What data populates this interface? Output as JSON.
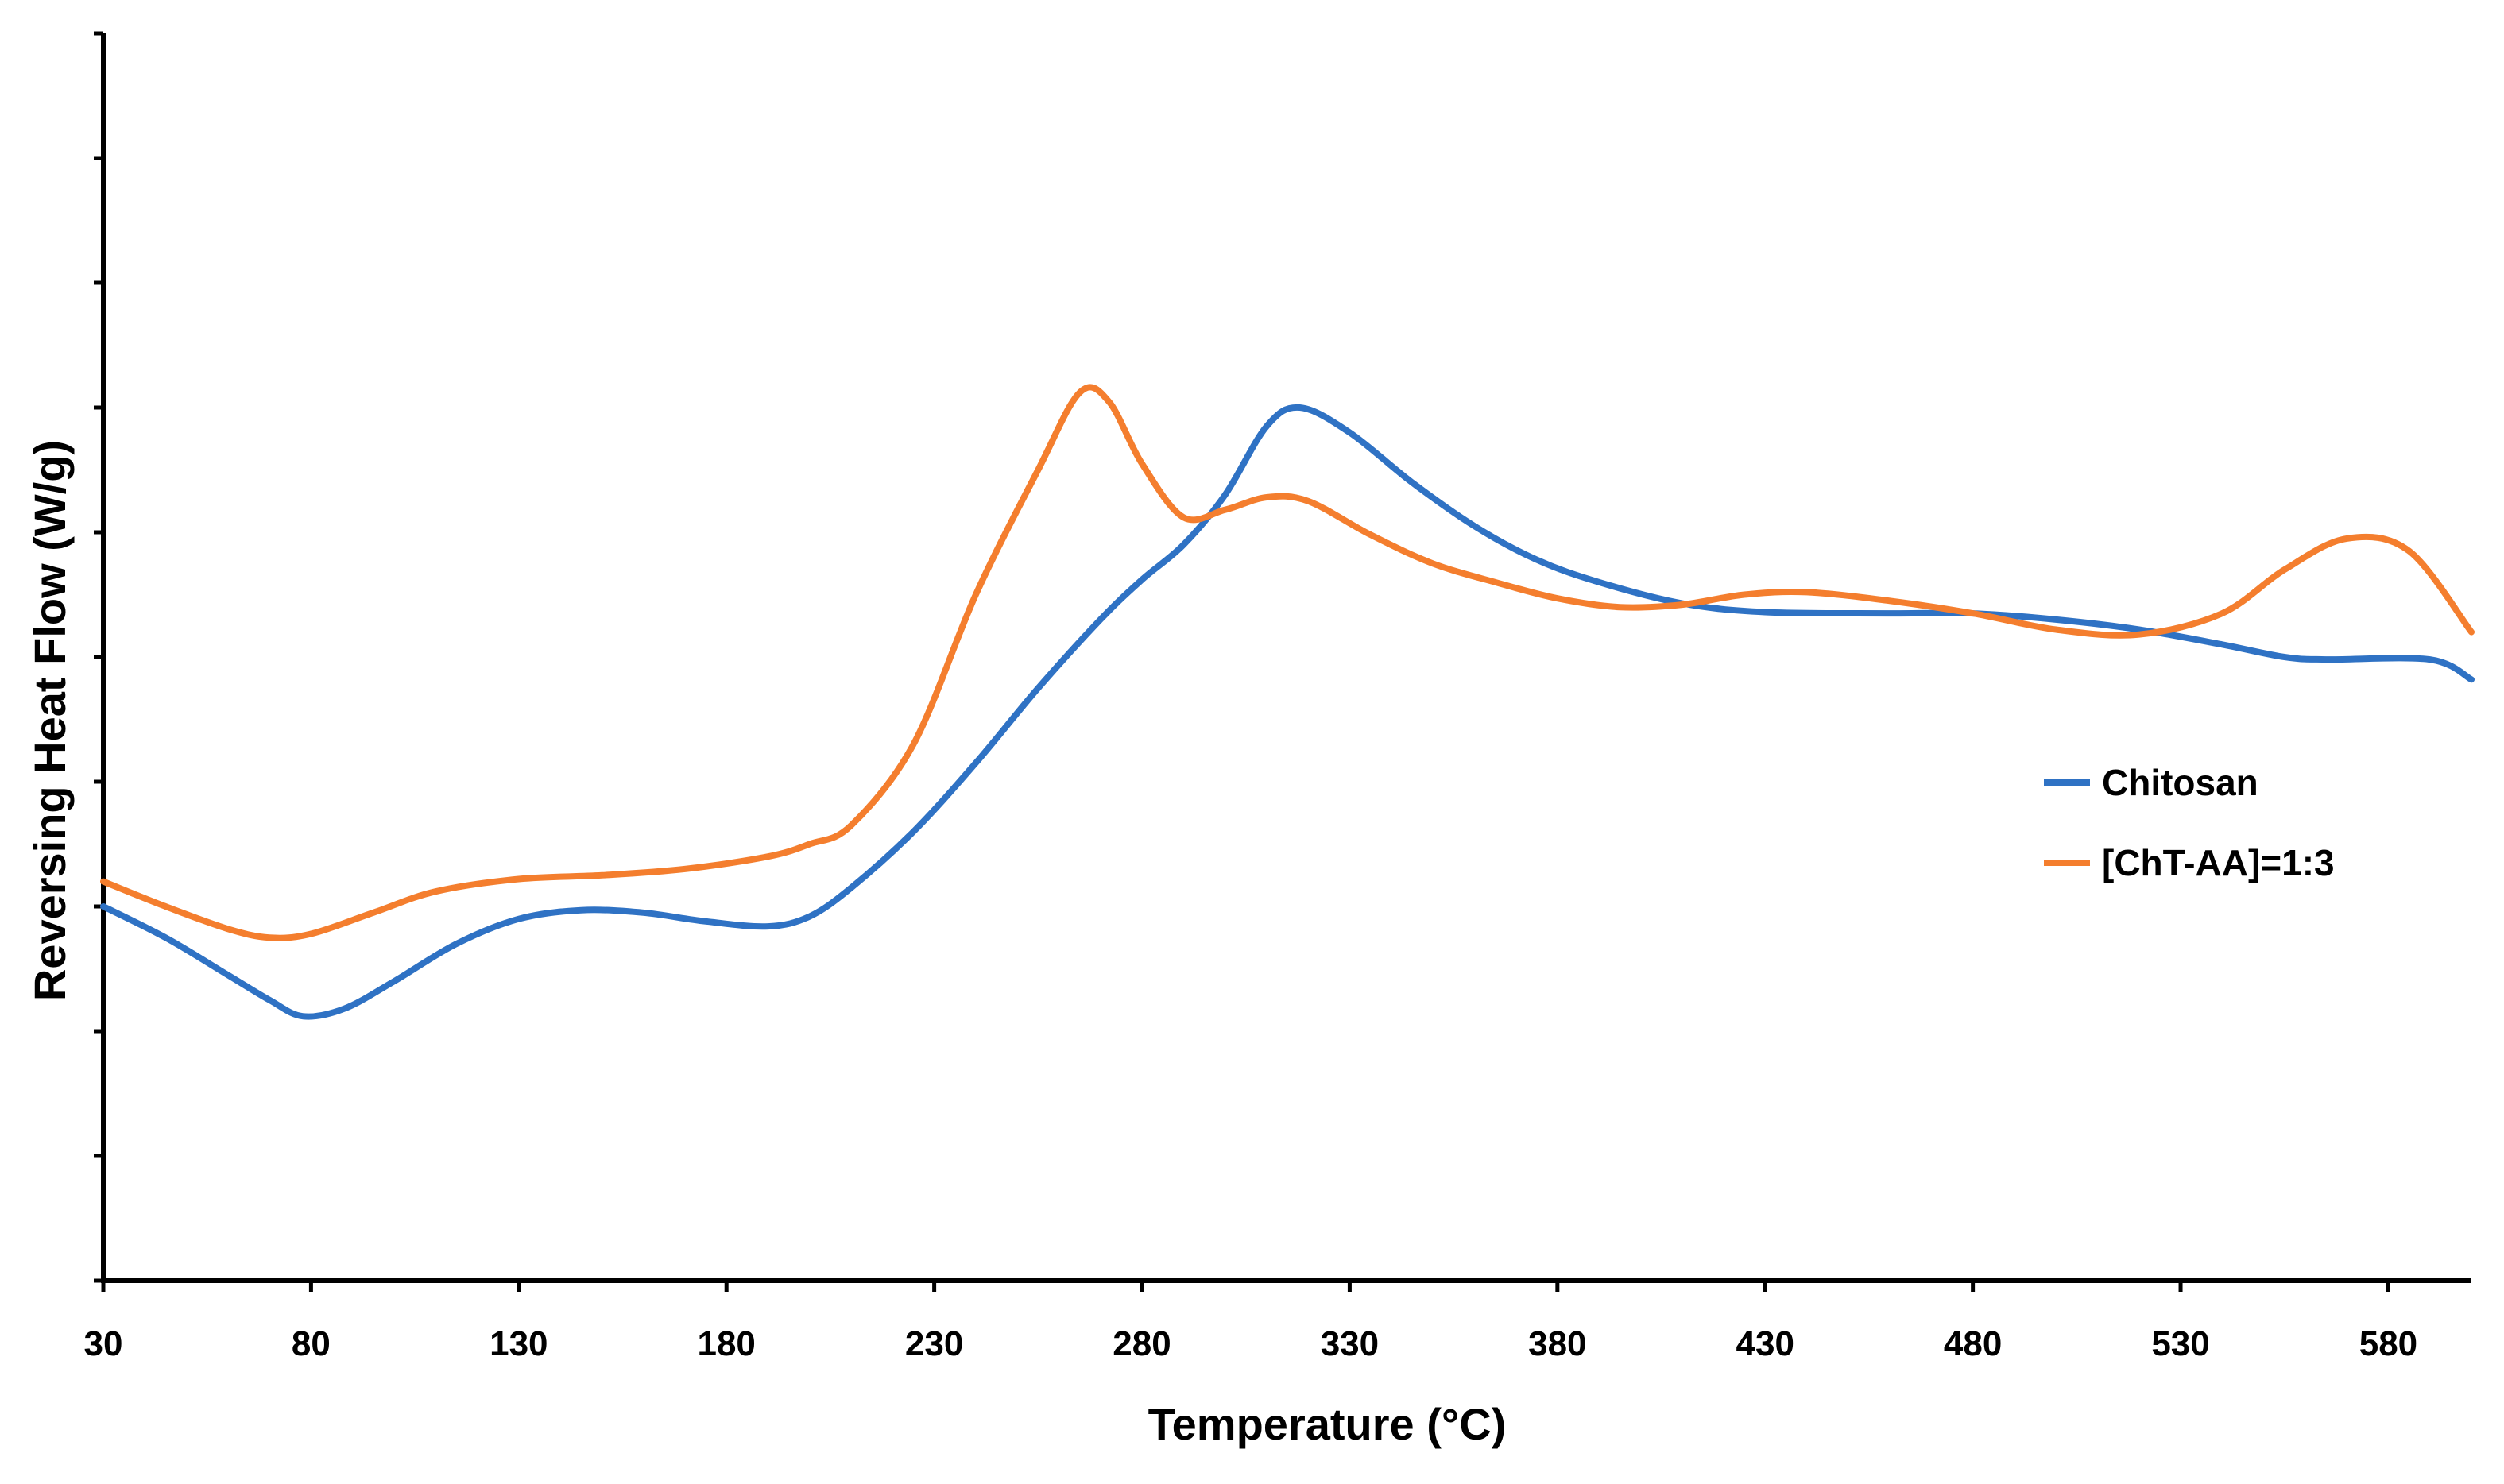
{
  "chart_data": {
    "type": "line",
    "title": "",
    "xlabel": "Temperature (°C)",
    "ylabel": "Reversing Heat Flow (W/g)",
    "xlim": [
      30,
      600
    ],
    "ylim": [
      0,
      10
    ],
    "x_ticks": [
      "30",
      "80",
      "130",
      "180",
      "230",
      "280",
      "330",
      "380",
      "430",
      "480",
      "530",
      "580"
    ],
    "y_tick_count": 11,
    "y_tick_labels_shown": false,
    "grid": false,
    "legend_position": "right",
    "series": [
      {
        "name": "Chitosan",
        "color": "#2F72C4",
        "points": [
          [
            30,
            3.0
          ],
          [
            45,
            2.75
          ],
          [
            60,
            2.45
          ],
          [
            70,
            2.25
          ],
          [
            78,
            2.12
          ],
          [
            88,
            2.18
          ],
          [
            100,
            2.4
          ],
          [
            115,
            2.7
          ],
          [
            130,
            2.9
          ],
          [
            145,
            2.97
          ],
          [
            160,
            2.95
          ],
          [
            175,
            2.88
          ],
          [
            190,
            2.84
          ],
          [
            200,
            2.92
          ],
          [
            210,
            3.15
          ],
          [
            225,
            3.6
          ],
          [
            240,
            4.15
          ],
          [
            255,
            4.75
          ],
          [
            270,
            5.3
          ],
          [
            280,
            5.62
          ],
          [
            290,
            5.9
          ],
          [
            300,
            6.3
          ],
          [
            310,
            6.85
          ],
          [
            318,
            7.0
          ],
          [
            330,
            6.8
          ],
          [
            345,
            6.4
          ],
          [
            360,
            6.05
          ],
          [
            375,
            5.78
          ],
          [
            390,
            5.6
          ],
          [
            410,
            5.43
          ],
          [
            430,
            5.36
          ],
          [
            460,
            5.35
          ],
          [
            480,
            5.35
          ],
          [
            500,
            5.3
          ],
          [
            520,
            5.22
          ],
          [
            540,
            5.1
          ],
          [
            555,
            5.0
          ],
          [
            565,
            4.98
          ],
          [
            590,
            4.98
          ],
          [
            600,
            4.82
          ]
        ]
      },
      {
        "name": "[ChT-AA]=1:3",
        "color": "#F47E2E",
        "points": [
          [
            30,
            3.2
          ],
          [
            45,
            3.0
          ],
          [
            60,
            2.82
          ],
          [
            70,
            2.75
          ],
          [
            80,
            2.78
          ],
          [
            95,
            2.95
          ],
          [
            110,
            3.12
          ],
          [
            130,
            3.22
          ],
          [
            150,
            3.25
          ],
          [
            170,
            3.3
          ],
          [
            190,
            3.4
          ],
          [
            200,
            3.5
          ],
          [
            210,
            3.65
          ],
          [
            225,
            4.3
          ],
          [
            240,
            5.5
          ],
          [
            255,
            6.5
          ],
          [
            265,
            7.12
          ],
          [
            272,
            7.05
          ],
          [
            280,
            6.55
          ],
          [
            290,
            6.12
          ],
          [
            300,
            6.18
          ],
          [
            310,
            6.28
          ],
          [
            320,
            6.25
          ],
          [
            335,
            5.98
          ],
          [
            350,
            5.75
          ],
          [
            365,
            5.6
          ],
          [
            380,
            5.47
          ],
          [
            395,
            5.4
          ],
          [
            410,
            5.42
          ],
          [
            425,
            5.5
          ],
          [
            440,
            5.52
          ],
          [
            460,
            5.45
          ],
          [
            480,
            5.35
          ],
          [
            500,
            5.22
          ],
          [
            520,
            5.18
          ],
          [
            540,
            5.35
          ],
          [
            555,
            5.7
          ],
          [
            570,
            5.95
          ],
          [
            585,
            5.85
          ],
          [
            600,
            5.2
          ]
        ]
      }
    ]
  }
}
